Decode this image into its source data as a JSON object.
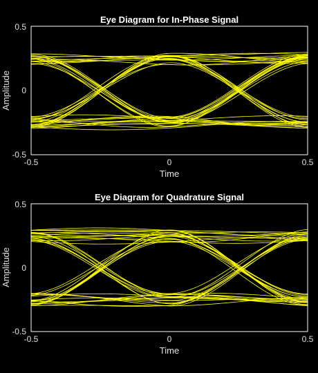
{
  "colors": {
    "background": "#000000",
    "axes_edge": "#ffffff",
    "tick_text": "#e0e0e0",
    "label_text": "#e0e0e0",
    "title_text": "#ffffff",
    "trace": "#ffff00"
  },
  "chart_data": [
    {
      "type": "line",
      "title": "Eye Diagram for In-Phase Signal",
      "xlabel": "Time",
      "ylabel": "Amplitude",
      "xlim": [
        -0.5,
        0.5
      ],
      "ylim": [
        -0.5,
        0.5
      ],
      "xticks": [
        -0.5,
        0,
        0.5
      ],
      "xtick_labels": [
        "-0.5",
        "0",
        "0.5"
      ],
      "yticks": [
        -0.5,
        0,
        0.5
      ],
      "ytick_labels": [
        "-0.5",
        "0",
        "0.5"
      ],
      "grid": false,
      "trace_color": "#ffff00",
      "num_traces": 40,
      "symbol_levels": [
        -0.25,
        0.25
      ],
      "eye_crossings_at_x": [
        -0.25,
        0.25
      ],
      "eye_center_x": 0,
      "amplitude_spread": 0.05
    },
    {
      "type": "line",
      "title": "Eye Diagram for Quadrature Signal",
      "xlabel": "Time",
      "ylabel": "Amplitude",
      "xlim": [
        -0.5,
        0.5
      ],
      "ylim": [
        -0.5,
        0.5
      ],
      "xticks": [
        -0.5,
        0,
        0.5
      ],
      "xtick_labels": [
        "-0.5",
        "0",
        "0.5"
      ],
      "yticks": [
        -0.5,
        0,
        0.5
      ],
      "ytick_labels": [
        "-0.5",
        "0",
        "0.5"
      ],
      "grid": false,
      "trace_color": "#ffff00",
      "num_traces": 40,
      "symbol_levels": [
        -0.25,
        0.25
      ],
      "eye_crossings_at_x": [
        -0.25,
        0.25
      ],
      "eye_center_x": 0,
      "amplitude_spread": 0.05
    }
  ]
}
